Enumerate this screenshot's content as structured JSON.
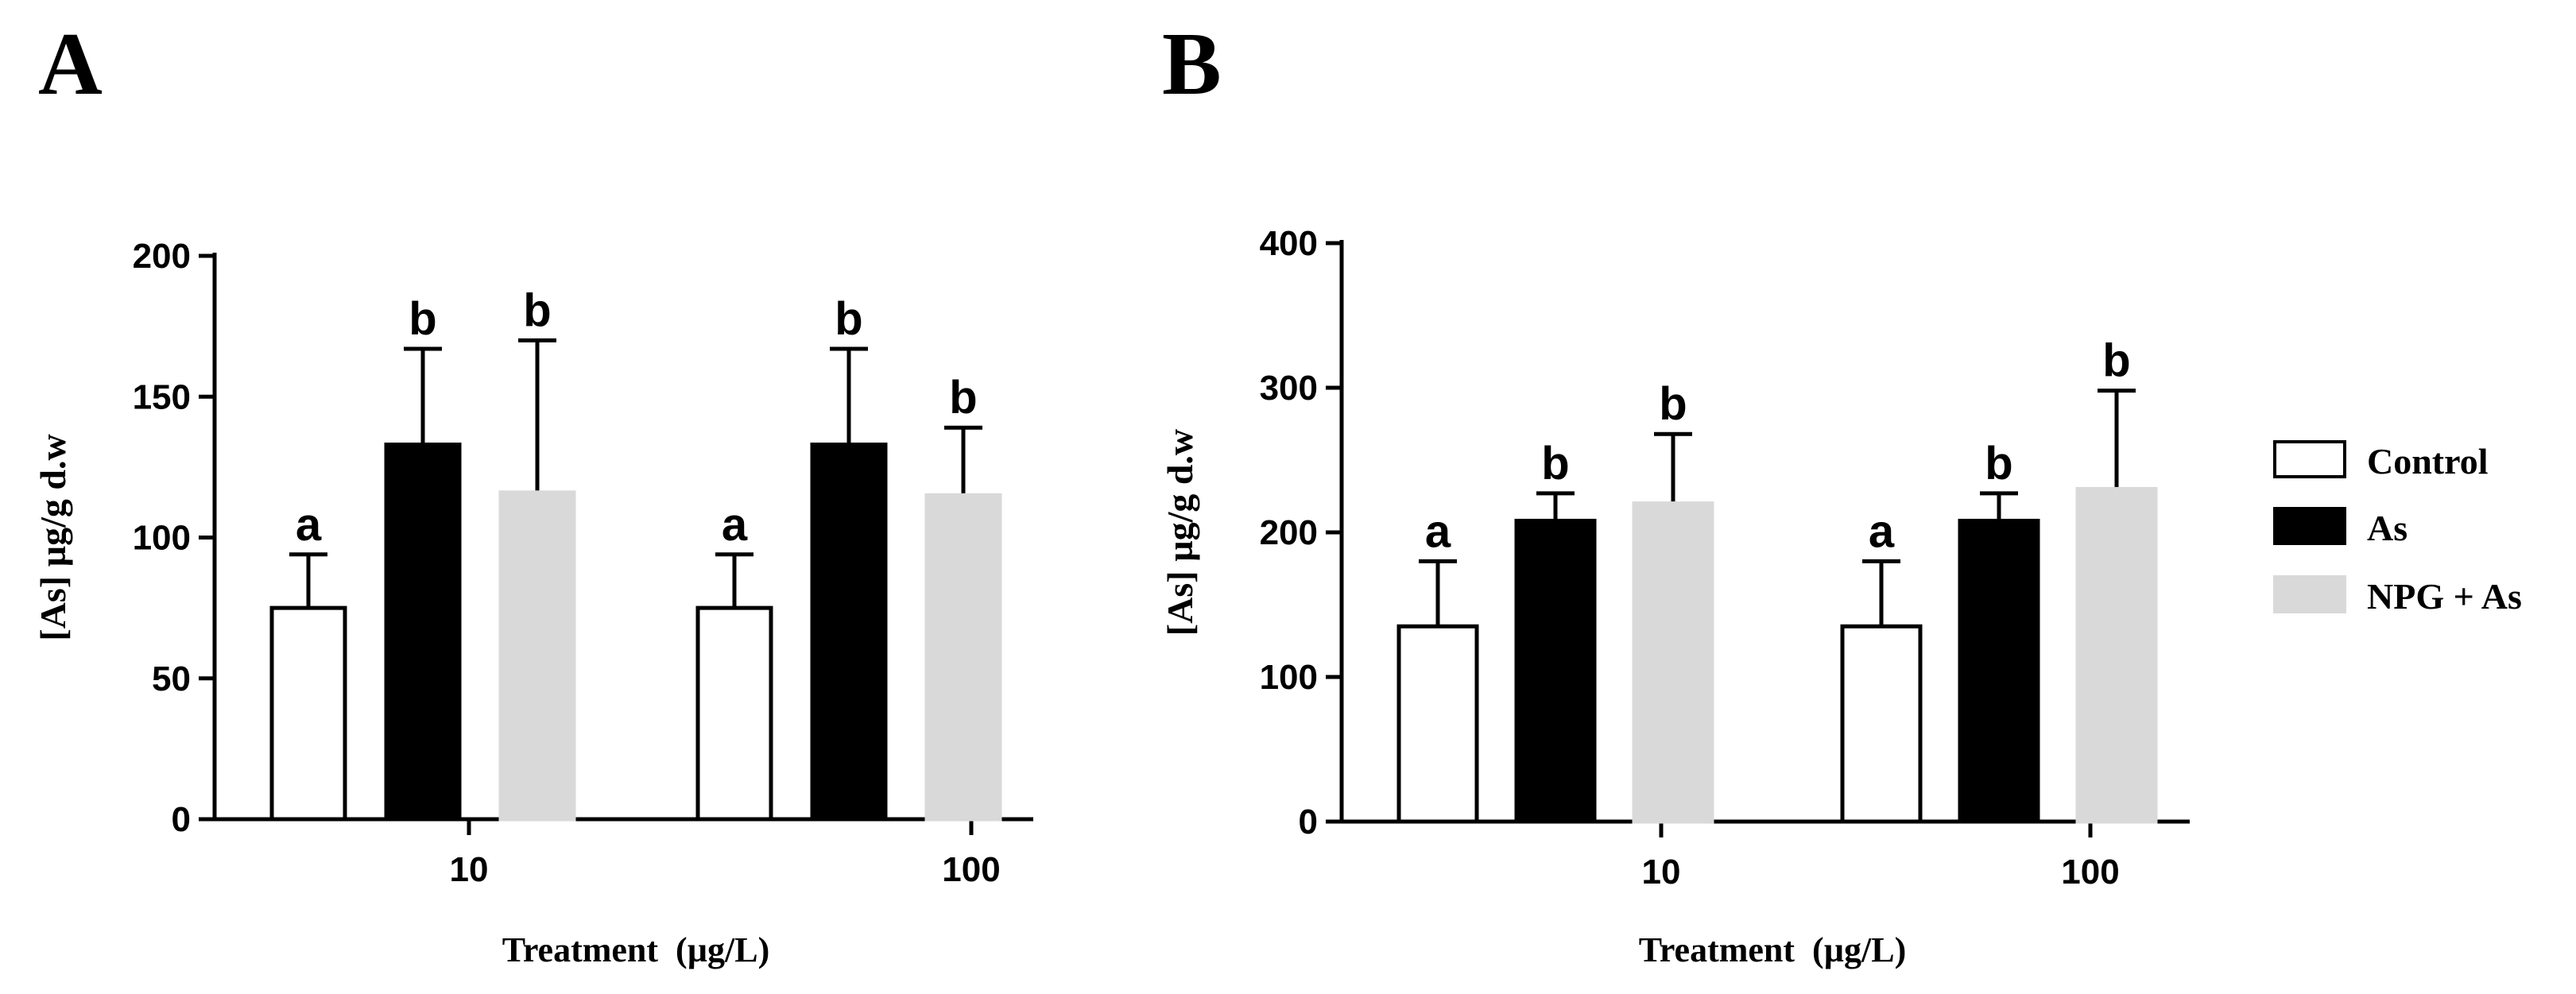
{
  "chart_data": [
    {
      "type": "bar",
      "panel": "A",
      "title": "",
      "xlabel": "Treatment  (µg/L)",
      "ylabel": "[As] µg/g d.w",
      "ylim": [
        0,
        200
      ],
      "yticks": [
        0,
        50,
        100,
        150,
        200
      ],
      "categories": [
        "10",
        "100"
      ],
      "series": [
        {
          "name": "Control",
          "values": [
            75,
            75
          ],
          "errors": [
            19,
            19
          ],
          "labels": [
            "a",
            "a"
          ]
        },
        {
          "name": "As",
          "values": [
            133,
            133
          ],
          "errors": [
            34,
            34
          ],
          "labels": [
            "b",
            "b"
          ]
        },
        {
          "name": "NPG + As",
          "values": [
            116,
            115
          ],
          "errors": [
            54,
            24
          ],
          "labels": [
            "b",
            "b"
          ]
        }
      ]
    },
    {
      "type": "bar",
      "panel": "B",
      "title": "",
      "xlabel": "Treatment  (µg/L)",
      "ylabel": "[As] µg/g d.w",
      "ylim": [
        0,
        400
      ],
      "yticks": [
        0,
        100,
        200,
        300,
        400
      ],
      "categories": [
        "10",
        "100"
      ],
      "series": [
        {
          "name": "Control",
          "values": [
            135,
            135
          ],
          "errors": [
            45,
            45
          ],
          "labels": [
            "a",
            "a"
          ]
        },
        {
          "name": "As",
          "values": [
            208,
            208
          ],
          "errors": [
            19,
            19
          ],
          "labels": [
            "b",
            "b"
          ]
        },
        {
          "name": "NPG + As",
          "values": [
            220,
            230
          ],
          "errors": [
            48,
            68
          ],
          "labels": [
            "b",
            "b"
          ]
        }
      ]
    }
  ],
  "legend": {
    "placement": "right",
    "entries": [
      {
        "name": "Control",
        "fill": "#ffffff"
      },
      {
        "name": "As",
        "fill": "#000000"
      },
      {
        "name": "NPG + As",
        "fill": "#d9d9d9"
      }
    ]
  },
  "colors": {
    "control": "#ffffff",
    "as": "#000000",
    "npg_as": "#d9d9d9",
    "stroke": "#000000"
  }
}
